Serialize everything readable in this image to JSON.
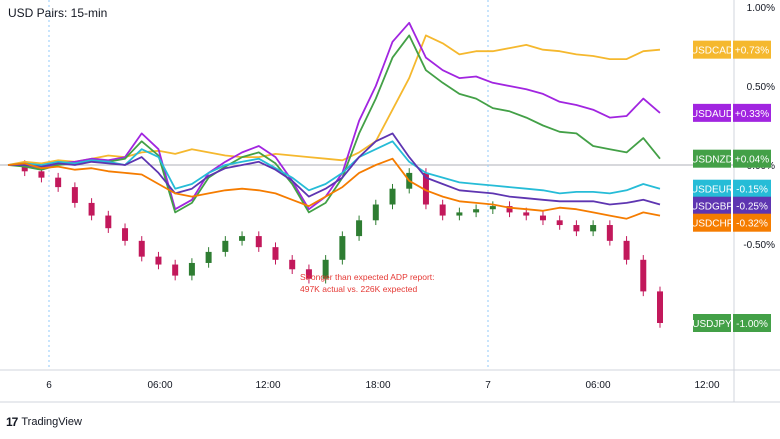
{
  "chart_data": {
    "type": "line",
    "title": "USD Pairs: 15-min",
    "x_ticks": [
      "6",
      "06:00",
      "12:00",
      "18:00",
      "7",
      "06:00",
      "12:00"
    ],
    "y_ticks": [
      "1.00%",
      "0.50%",
      "0.00%",
      "-0.50%"
    ],
    "ylim": [
      -1.1,
      1.0
    ],
    "grid": false,
    "annotation": {
      "line1": "Stronger than expected ADP report:",
      "line2": "497K actual vs. 226K expected"
    },
    "series": [
      {
        "name": "USDCAD",
        "last": "+0.73%",
        "color": "#f5b82e",
        "values": [
          0.0,
          0.02,
          0.01,
          0.03,
          0.02,
          0.04,
          0.06,
          0.05,
          0.08,
          0.09,
          0.07,
          0.1,
          0.08,
          0.06,
          0.05,
          0.05,
          0.07,
          0.06,
          0.05,
          0.04,
          0.03,
          0.08,
          0.15,
          0.35,
          0.55,
          0.82,
          0.77,
          0.7,
          0.72,
          0.72,
          0.74,
          0.76,
          0.73,
          0.72,
          0.7,
          0.69,
          0.67,
          0.67,
          0.72,
          0.73
        ]
      },
      {
        "name": "USDAUD",
        "last": "+0.33%",
        "color": "#a125e0",
        "values": [
          0.0,
          0.0,
          -0.02,
          0.01,
          0.02,
          0.04,
          0.03,
          0.05,
          0.2,
          0.1,
          -0.28,
          -0.22,
          -0.05,
          0.02,
          0.08,
          0.12,
          0.05,
          -0.1,
          -0.28,
          -0.2,
          -0.05,
          0.28,
          0.5,
          0.78,
          0.9,
          0.68,
          0.6,
          0.55,
          0.56,
          0.52,
          0.5,
          0.48,
          0.45,
          0.4,
          0.38,
          0.35,
          0.3,
          0.31,
          0.42,
          0.33
        ]
      },
      {
        "name": "USDNZD",
        "last": "+0.04%",
        "color": "#43a047",
        "values": [
          0.0,
          -0.01,
          -0.03,
          0.0,
          0.01,
          0.03,
          0.02,
          0.04,
          0.15,
          0.06,
          -0.3,
          -0.24,
          -0.08,
          -0.01,
          0.05,
          0.08,
          0.01,
          -0.12,
          -0.3,
          -0.24,
          -0.08,
          0.2,
          0.42,
          0.68,
          0.82,
          0.6,
          0.52,
          0.45,
          0.42,
          0.36,
          0.34,
          0.3,
          0.25,
          0.21,
          0.2,
          0.12,
          0.1,
          0.08,
          0.17,
          0.04
        ]
      },
      {
        "name": "USDEUR",
        "last": "-0.15%",
        "color": "#26bcd7",
        "values": [
          0.0,
          0.01,
          0.0,
          0.02,
          0.01,
          0.03,
          0.02,
          0.0,
          0.1,
          0.05,
          -0.15,
          -0.12,
          -0.05,
          0.0,
          0.02,
          0.04,
          -0.02,
          -0.08,
          -0.16,
          -0.12,
          -0.05,
          0.05,
          0.1,
          0.15,
          0.02,
          -0.05,
          -0.08,
          -0.11,
          -0.12,
          -0.13,
          -0.14,
          -0.15,
          -0.16,
          -0.18,
          -0.17,
          -0.17,
          -0.18,
          -0.16,
          -0.12,
          -0.15
        ]
      },
      {
        "name": "USDGBP",
        "last": "-0.25%",
        "color": "#5e35b1",
        "values": [
          0.0,
          0.0,
          -0.01,
          0.01,
          0.0,
          0.02,
          0.01,
          0.0,
          0.05,
          -0.05,
          -0.18,
          -0.15,
          -0.07,
          -0.02,
          0.0,
          0.02,
          -0.03,
          -0.1,
          -0.2,
          -0.15,
          -0.08,
          0.05,
          0.15,
          0.2,
          0.05,
          -0.08,
          -0.12,
          -0.16,
          -0.17,
          -0.18,
          -0.2,
          -0.21,
          -0.22,
          -0.23,
          -0.23,
          -0.23,
          -0.25,
          -0.24,
          -0.22,
          -0.25
        ]
      },
      {
        "name": "USDCHF",
        "last": "-0.32%",
        "color": "#f57c00",
        "values": [
          0.0,
          0.01,
          -0.02,
          -0.01,
          -0.03,
          -0.02,
          -0.04,
          -0.05,
          -0.06,
          -0.12,
          -0.18,
          -0.2,
          -0.18,
          -0.16,
          -0.15,
          -0.16,
          -0.18,
          -0.22,
          -0.26,
          -0.2,
          -0.14,
          -0.05,
          0.0,
          0.04,
          -0.1,
          -0.16,
          -0.2,
          -0.23,
          -0.24,
          -0.25,
          -0.27,
          -0.28,
          -0.29,
          -0.27,
          -0.28,
          -0.3,
          -0.32,
          -0.34,
          -0.3,
          -0.32
        ]
      },
      {
        "name": "USDJPY",
        "last": "-1.00%",
        "color": "#388e3c",
        "kind": "candle",
        "values": [
          0.0,
          -0.04,
          -0.08,
          -0.14,
          -0.24,
          -0.32,
          -0.4,
          -0.48,
          -0.58,
          -0.63,
          -0.7,
          -0.62,
          -0.55,
          -0.48,
          -0.45,
          -0.52,
          -0.6,
          -0.66,
          -0.72,
          -0.6,
          -0.45,
          -0.35,
          -0.25,
          -0.15,
          -0.05,
          -0.25,
          -0.32,
          -0.3,
          -0.28,
          -0.26,
          -0.3,
          -0.32,
          -0.35,
          -0.38,
          -0.42,
          -0.38,
          -0.48,
          -0.6,
          -0.8,
          -1.0
        ]
      }
    ]
  },
  "branding": {
    "logo": "17",
    "name": "TradingView"
  }
}
